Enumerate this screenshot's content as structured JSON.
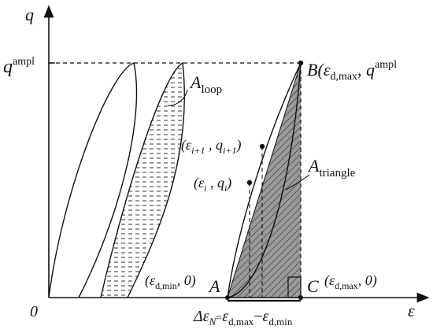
{
  "axes": {
    "y_label": "q",
    "x_label": "ε",
    "origin_label": "0",
    "q_ampl_label": "q",
    "q_ampl_sup": "ampl"
  },
  "annotations": {
    "loop_area": {
      "main": "A",
      "sub": "loop"
    },
    "triangle_area": {
      "main": "A",
      "sub": "triangle"
    },
    "point_B": {
      "name": "B(",
      "eps": "ε",
      "sub": "d,max",
      "sep": ", q",
      "sup": "ampl"
    },
    "point_A": "A",
    "point_C": "C",
    "coord_min": {
      "open": "(ε",
      "sub": "d,min",
      "close": ", 0)"
    },
    "coord_max": {
      "open": "(ε",
      "sub": "d,max",
      "close": ", 0)"
    },
    "point_i1": {
      "open": "(ε",
      "sub1": "i+1",
      "mid": " , q",
      "sub2": "i+1",
      "close": ")"
    },
    "point_i": {
      "open": "(ε",
      "sub1": "i",
      "mid": " , q",
      "sub2": "i",
      "close": ")"
    },
    "delta": {
      "pre": "Δε",
      "sub": "N",
      "eq": "=",
      "e1": "ε",
      "s1": "d,max",
      "minus": "−",
      "e2": "ε",
      "s2": "d,min"
    }
  }
}
